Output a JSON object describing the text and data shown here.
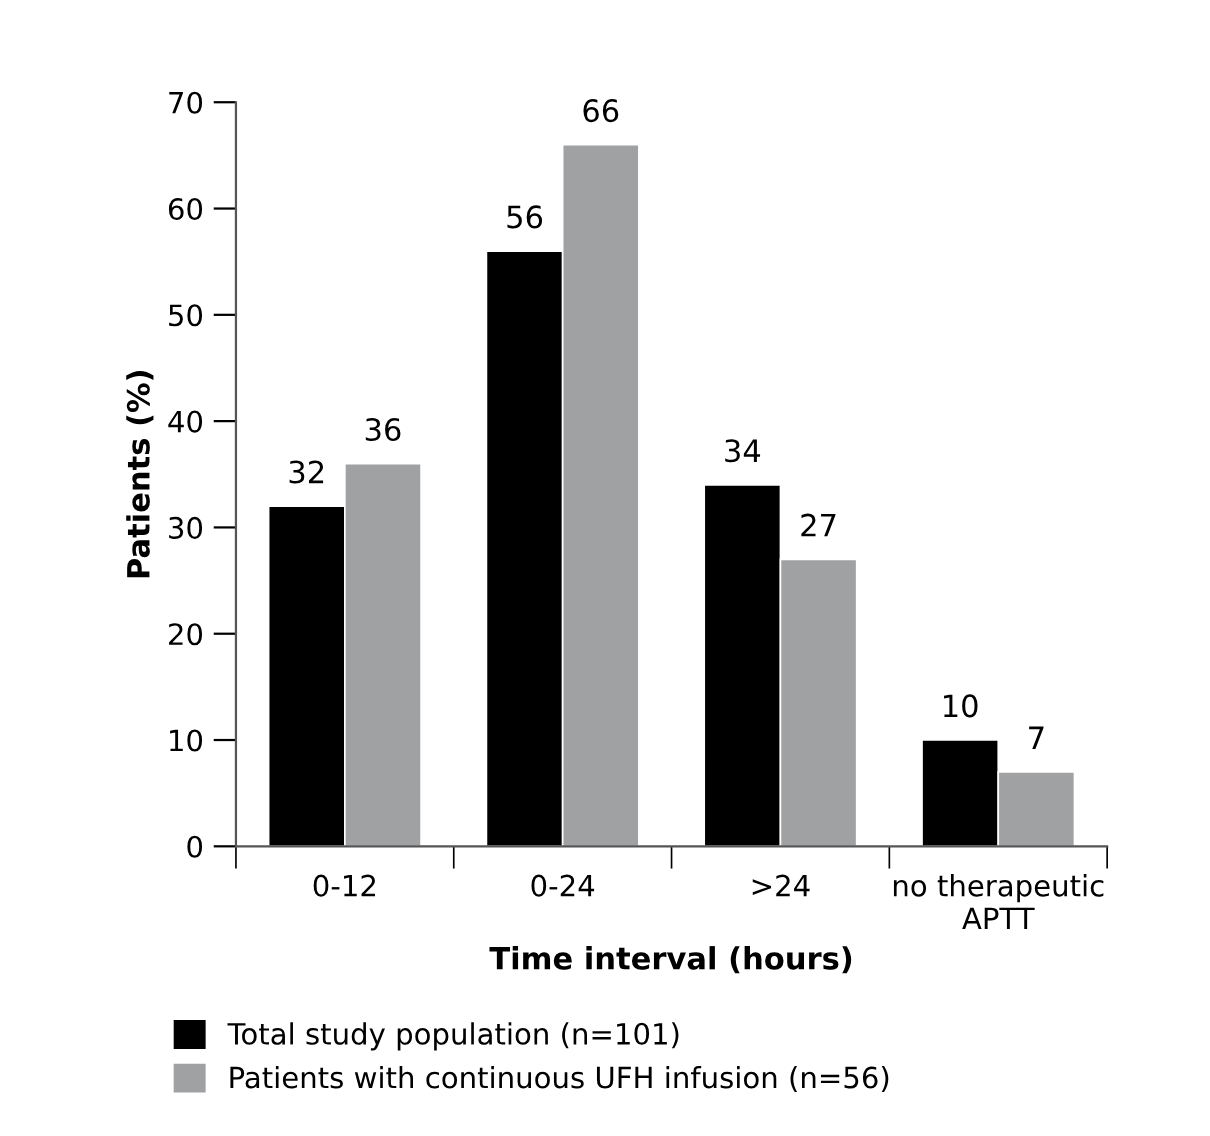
{
  "chart_data": {
    "type": "bar",
    "xlabel": "Time interval (hours)",
    "ylabel": "Patients (%)",
    "categories": [
      "0-12",
      "0-24",
      ">24",
      "no therapeutic\nAPTT"
    ],
    "series": [
      {
        "name": "Total study population (n=101)",
        "color": "#000000",
        "values": [
          32,
          56,
          34,
          10
        ]
      },
      {
        "name": "Patients with continuous UFH infusion (n=56)",
        "color": "#a0a1a3",
        "values": [
          36,
          66,
          27,
          7
        ]
      }
    ],
    "ylim": [
      0,
      70
    ],
    "yticks": [
      0,
      10,
      20,
      30,
      40,
      50,
      60,
      70
    ],
    "data_labels": true,
    "grid": false,
    "legend": "bottom"
  }
}
